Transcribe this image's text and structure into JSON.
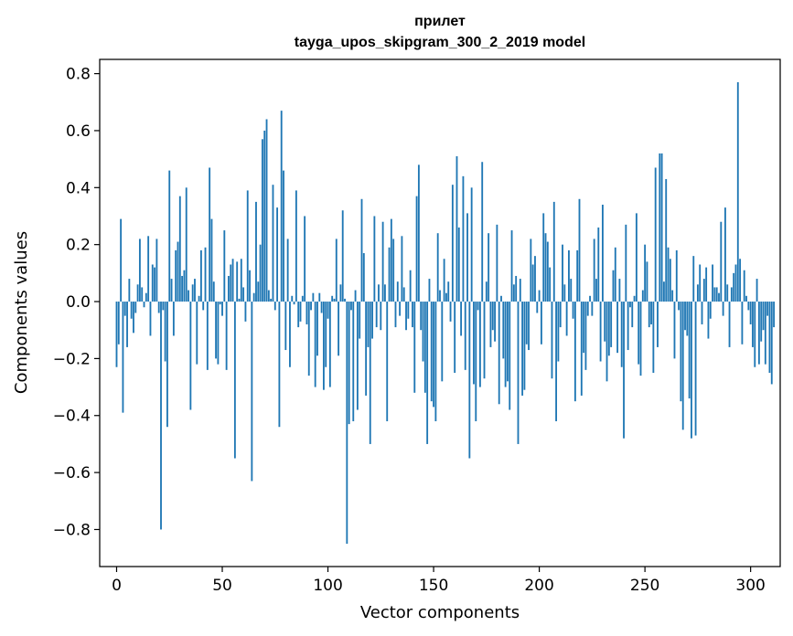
{
  "chart_data": {
    "type": "bar",
    "title": "прилет",
    "subtitle": "tayga_upos_skipgram_300_2_2019 model",
    "xlabel": "Vector components",
    "ylabel": "Components values",
    "xlim": [
      -8,
      314
    ],
    "ylim": [
      -0.93,
      0.85
    ],
    "xticks": [
      0,
      50,
      100,
      150,
      200,
      250,
      300
    ],
    "xtick_labels": [
      "0",
      "50",
      "100",
      "150",
      "200",
      "250",
      "300"
    ],
    "yticks": [
      -0.8,
      -0.6,
      -0.4,
      -0.2,
      0.0,
      0.2,
      0.4,
      0.6,
      0.8
    ],
    "ytick_labels": [
      "−0.8",
      "−0.6",
      "−0.4",
      "−0.2",
      "0.0",
      "0.2",
      "0.4",
      "0.6",
      "0.8"
    ],
    "bar_color": "#1f77b4",
    "values": [
      -0.23,
      -0.15,
      0.29,
      -0.39,
      -0.05,
      -0.16,
      0.08,
      -0.06,
      -0.11,
      -0.04,
      0.06,
      0.22,
      0.05,
      -0.02,
      0.03,
      0.23,
      -0.12,
      0.13,
      0.12,
      0.22,
      -0.04,
      -0.8,
      -0.03,
      -0.21,
      -0.44,
      0.46,
      0.08,
      -0.12,
      0.18,
      0.21,
      0.37,
      0.09,
      0.11,
      0.4,
      0.04,
      -0.38,
      0.06,
      0.08,
      -0.22,
      0.02,
      0.18,
      -0.03,
      0.19,
      -0.24,
      0.47,
      0.29,
      0.07,
      -0.2,
      -0.22,
      -0.01,
      -0.05,
      0.25,
      -0.24,
      0.09,
      0.13,
      0.15,
      -0.55,
      0.14,
      0.01,
      0.15,
      0.05,
      -0.07,
      0.39,
      0.11,
      -0.63,
      0.03,
      0.35,
      0.07,
      0.2,
      0.57,
      0.6,
      0.64,
      0.04,
      0.01,
      0.41,
      -0.03,
      0.33,
      -0.44,
      0.67,
      0.46,
      -0.17,
      0.22,
      -0.23,
      0.02,
      -0.01,
      0.39,
      -0.09,
      -0.07,
      0.02,
      0.3,
      -0.08,
      -0.26,
      -0.03,
      0.03,
      -0.3,
      -0.19,
      0.03,
      -0.04,
      -0.31,
      -0.23,
      -0.06,
      -0.3,
      0.02,
      0.01,
      0.22,
      -0.19,
      0.06,
      0.32,
      0.01,
      -0.85,
      -0.43,
      -0.03,
      -0.42,
      0.04,
      -0.38,
      -0.13,
      0.36,
      0.17,
      -0.33,
      -0.16,
      -0.5,
      -0.13,
      0.3,
      -0.09,
      0.06,
      -0.1,
      0.28,
      0.06,
      -0.42,
      0.19,
      0.29,
      0.22,
      -0.09,
      0.07,
      -0.05,
      0.23,
      0.05,
      -0.1,
      -0.06,
      0.11,
      -0.09,
      -0.32,
      0.37,
      0.48,
      -0.1,
      -0.21,
      -0.32,
      -0.5,
      0.08,
      -0.35,
      -0.37,
      -0.42,
      0.24,
      0.04,
      -0.28,
      0.15,
      0.03,
      0.07,
      -0.07,
      0.41,
      -0.25,
      0.51,
      0.26,
      -0.12,
      0.44,
      -0.24,
      0.31,
      -0.55,
      0.4,
      -0.29,
      -0.42,
      -0.03,
      -0.3,
      0.49,
      -0.27,
      0.07,
      0.24,
      -0.16,
      -0.1,
      -0.14,
      0.27,
      -0.36,
      0.02,
      -0.2,
      -0.3,
      -0.28,
      -0.38,
      0.25,
      0.06,
      0.09,
      -0.5,
      0.08,
      -0.33,
      -0.31,
      -0.15,
      -0.17,
      0.22,
      0.13,
      0.16,
      -0.04,
      0.04,
      -0.15,
      0.31,
      0.24,
      0.21,
      0.12,
      -0.27,
      0.35,
      -0.42,
      -0.21,
      -0.09,
      0.2,
      0.06,
      -0.12,
      0.18,
      0.08,
      -0.06,
      -0.35,
      0.18,
      0.36,
      -0.33,
      -0.18,
      -0.24,
      -0.05,
      0.02,
      -0.05,
      0.22,
      0.08,
      0.26,
      -0.21,
      0.34,
      -0.14,
      -0.28,
      -0.19,
      -0.16,
      0.11,
      0.19,
      -0.18,
      0.08,
      -0.23,
      -0.48,
      0.27,
      -0.17,
      -0.02,
      -0.09,
      0.02,
      0.31,
      -0.22,
      -0.26,
      0.04,
      0.2,
      0.14,
      -0.09,
      -0.08,
      -0.25,
      0.47,
      -0.16,
      0.52,
      0.52,
      0.07,
      0.43,
      0.19,
      0.15,
      0.04,
      -0.2,
      0.18,
      -0.03,
      -0.35,
      -0.45,
      -0.1,
      -0.12,
      -0.34,
      -0.48,
      0.16,
      -0.47,
      0.06,
      0.13,
      -0.08,
      0.08,
      0.12,
      -0.13,
      -0.06,
      0.13,
      0.05,
      0.05,
      0.03,
      0.28,
      -0.05,
      0.33,
      0.06,
      -0.16,
      0.05,
      0.1,
      0.13,
      0.77,
      0.15,
      -0.15,
      0.11,
      0.02,
      -0.03,
      -0.08,
      -0.16,
      -0.23,
      0.08,
      -0.22,
      -0.14,
      -0.1,
      -0.22,
      -0.05,
      -0.25,
      -0.29,
      -0.09
    ]
  }
}
